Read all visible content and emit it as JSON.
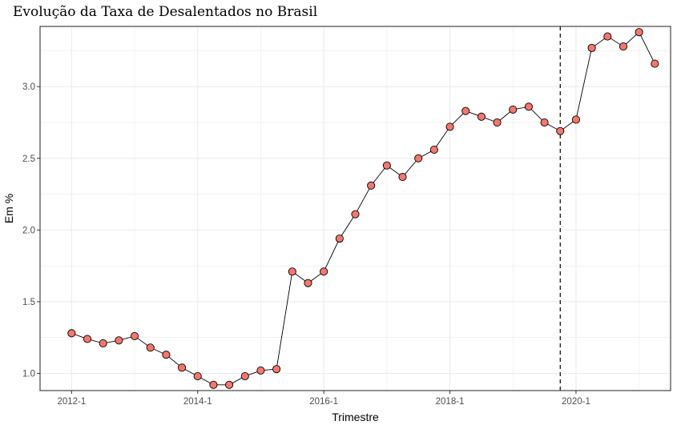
{
  "chart_data": {
    "type": "line",
    "title": "Evolução da Taxa de Desalentados no Brasil",
    "xlabel": "Trimestre",
    "ylabel": "Em %",
    "x_tick_labels": [
      "2012-1",
      "2014-1",
      "2016-1",
      "2018-1",
      "2020-1"
    ],
    "x_tick_index": [
      0,
      8,
      16,
      24,
      32
    ],
    "y_ticks": [
      1.0,
      1.5,
      2.0,
      2.5,
      3.0
    ],
    "y_tick_labels": [
      "1.0",
      "1.5",
      "2.0",
      "2.5",
      "3.0"
    ],
    "ylim": [
      0.88,
      3.42
    ],
    "x_range": [
      -2,
      38
    ],
    "vline_at_index": 31,
    "grid": true,
    "colors": {
      "point_fill": "#F8766D",
      "point_stroke": "#000000",
      "line": "#000000",
      "grid": "#ebebeb",
      "border": "#333333"
    },
    "x": [
      "2012-1",
      "2012-2",
      "2012-3",
      "2012-4",
      "2013-1",
      "2013-2",
      "2013-3",
      "2013-4",
      "2014-1",
      "2014-2",
      "2014-3",
      "2014-4",
      "2015-1",
      "2015-2",
      "2015-3",
      "2015-4",
      "2016-1",
      "2016-2",
      "2016-3",
      "2016-4",
      "2017-1",
      "2017-2",
      "2017-3",
      "2017-4",
      "2018-1",
      "2018-2",
      "2018-3",
      "2018-4",
      "2019-1",
      "2019-2",
      "2019-3",
      "2019-4",
      "2020-1",
      "2020-2",
      "2020-3",
      "2020-4",
      "2021-1",
      "2021-2"
    ],
    "values": [
      1.28,
      1.24,
      1.21,
      1.23,
      1.26,
      1.18,
      1.13,
      1.04,
      0.98,
      0.92,
      0.92,
      0.98,
      1.02,
      1.03,
      1.71,
      1.63,
      1.71,
      1.94,
      2.11,
      2.31,
      2.45,
      2.37,
      2.5,
      2.56,
      2.72,
      2.83,
      2.79,
      2.75,
      2.84,
      2.86,
      2.75,
      2.69,
      2.77,
      3.27,
      3.35,
      3.28,
      3.38,
      3.16
    ]
  }
}
